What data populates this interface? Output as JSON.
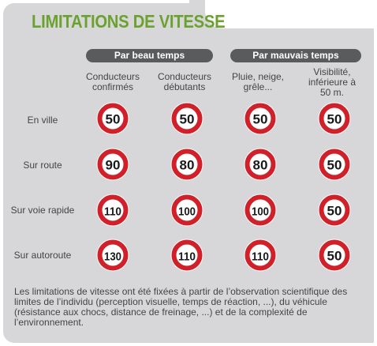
{
  "title": "LIMITATIONS DE VITESSE",
  "groups": {
    "beau_temps": "Par beau temps",
    "mauvais_temps": "Par mauvais temps"
  },
  "columns": {
    "col1": [
      "Conducteurs",
      "confirmés"
    ],
    "col2": [
      "Conducteurs",
      "débutants"
    ],
    "col3": [
      "Pluie, neige,",
      "grêle..."
    ],
    "col4": [
      "Visibilité,",
      "inférieure à",
      "50 m."
    ]
  },
  "rows": {
    "ville": {
      "label": "En ville",
      "limits": [
        "50",
        "50",
        "50",
        "50"
      ]
    },
    "route": {
      "label": "Sur route",
      "limits": [
        "90",
        "80",
        "80",
        "50"
      ]
    },
    "voie_rapide": {
      "label": "Sur voie rapide",
      "limits": [
        "110",
        "100",
        "100",
        "50"
      ]
    },
    "autoroute": {
      "label": "Sur autoroute",
      "limits": [
        "130",
        "110",
        "110",
        "50"
      ]
    }
  },
  "note": "Les limitations de vitesse ont été fixées à partir de l’observation scientifique des limites de l’individu (perception visuelle, temps de réaction, ...), du véhicule (résistance aux chocs, distance de freinage, ...) et de la complexité de l’environnement.",
  "colors": {
    "title_green": "#6ba22f",
    "sign_red": "#d0202a",
    "header_gray": "#5a5b5d",
    "panel_gray": "#d7d7d9"
  }
}
